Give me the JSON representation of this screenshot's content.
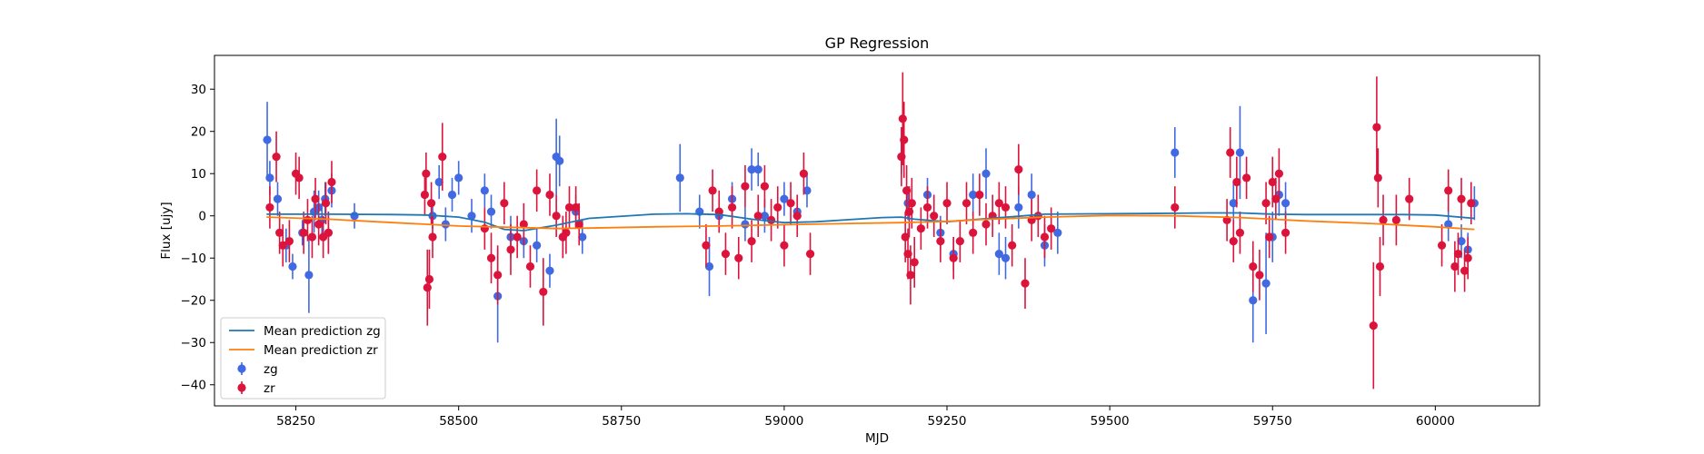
{
  "chart_data": {
    "type": "scatter",
    "title": "GP Regression",
    "xlabel": "MJD",
    "ylabel": "Flux [ujy]",
    "xlim": [
      58125,
      60160
    ],
    "ylim": [
      -45,
      38
    ],
    "xticks": [
      58250,
      58500,
      58750,
      59000,
      59250,
      59500,
      59750,
      60000
    ],
    "yticks": [
      -40,
      -30,
      -20,
      -10,
      0,
      10,
      20,
      30
    ],
    "grid": false,
    "legend_position": "lower-left",
    "legend": [
      {
        "name": "Mean prediction zg",
        "kind": "line",
        "color": "#1f77b4"
      },
      {
        "name": "Mean prediction zr",
        "kind": "line",
        "color": "#ff7f0e"
      },
      {
        "name": "zg",
        "kind": "errorbar",
        "color": "#4169e1"
      },
      {
        "name": "zr",
        "kind": "errorbar",
        "color": "#dc143c"
      }
    ],
    "series": [
      {
        "name": "Mean prediction zg",
        "kind": "line",
        "color": "#1f77b4",
        "x": [
          58205,
          58300,
          58400,
          58450,
          58500,
          58540,
          58570,
          58600,
          58650,
          58700,
          58800,
          58850,
          58900,
          58950,
          59000,
          59050,
          59100,
          59150,
          59180,
          59200,
          59250,
          59300,
          59350,
          59400,
          59500,
          59600,
          59650,
          59700,
          59750,
          59800,
          59900,
          59950,
          60000,
          60060
        ],
        "y": [
          0.4,
          0.4,
          0.3,
          0.2,
          -0.3,
          -1.5,
          -3.2,
          -3.5,
          -2.2,
          -0.6,
          0.4,
          0.5,
          0.3,
          -0.8,
          -1.6,
          -1.4,
          -0.9,
          -0.4,
          -0.3,
          -0.8,
          -1.4,
          -0.8,
          -0.2,
          0.4,
          0.5,
          0.6,
          0.7,
          0.7,
          0.4,
          0.3,
          0.3,
          0.3,
          0.2,
          -0.6
        ]
      },
      {
        "name": "Mean prediction zr",
        "kind": "line",
        "color": "#ff7f0e",
        "x": [
          58205,
          58300,
          58400,
          58450,
          58500,
          58550,
          58600,
          58650,
          58700,
          58800,
          58900,
          59000,
          59100,
          59180,
          59250,
          59300,
          59400,
          59500,
          59600,
          59700,
          59750,
          59800,
          59900,
          60000,
          60060
        ],
        "y": [
          -0.3,
          -0.8,
          -1.6,
          -2.0,
          -2.4,
          -2.6,
          -2.8,
          -3.0,
          -2.9,
          -2.6,
          -2.4,
          -2.1,
          -1.8,
          -1.6,
          -1.3,
          -0.9,
          -0.3,
          0.1,
          0.0,
          -0.4,
          -0.8,
          -1.2,
          -1.8,
          -2.6,
          -3.2
        ]
      },
      {
        "name": "zg",
        "kind": "errorbar",
        "color": "#4169e1",
        "x": [
          58206,
          58210,
          58222,
          58235,
          58245,
          58260,
          58270,
          58278,
          58285,
          58290,
          58295,
          58300,
          58305,
          58340,
          58460,
          58470,
          58480,
          58490,
          58500,
          58520,
          58540,
          58550,
          58560,
          58580,
          58600,
          58620,
          58640,
          58650,
          58655,
          58660,
          58680,
          58690,
          58840,
          58870,
          58885,
          58900,
          58920,
          58940,
          58950,
          58960,
          58970,
          59000,
          59020,
          59035,
          59180,
          59190,
          59220,
          59240,
          59260,
          59290,
          59310,
          59330,
          59340,
          59360,
          59380,
          59400,
          59420,
          59600,
          59690,
          59700,
          59720,
          59740,
          59750,
          59760,
          59770,
          60020,
          60040,
          60050,
          60060
        ],
        "y": [
          18,
          9,
          4,
          -7,
          -12,
          -4,
          -14,
          1,
          2,
          -1,
          4,
          -4,
          6,
          0,
          0,
          8,
          -2,
          5,
          9,
          0,
          6,
          1,
          -19,
          -5,
          -6,
          -7,
          -13,
          14,
          13,
          -5,
          1,
          -5,
          9,
          1,
          -12,
          0,
          4,
          -2,
          11,
          11,
          0,
          4,
          1,
          6,
          14,
          3,
          5,
          -4,
          -9,
          5,
          10,
          -9,
          -10,
          2,
          5,
          -7,
          -4,
          15,
          3,
          15,
          -20,
          -16,
          -5,
          5,
          3,
          -2,
          -6,
          -8,
          3
        ],
        "err": [
          9,
          4,
          4,
          4,
          3,
          3,
          9,
          5,
          4,
          4,
          4,
          5,
          4,
          3,
          3,
          4,
          4,
          4,
          4,
          4,
          4,
          4,
          11,
          5,
          4,
          4,
          4,
          9,
          6,
          5,
          4,
          4,
          8,
          4,
          7,
          4,
          4,
          4,
          5,
          4,
          4,
          4,
          4,
          4,
          4,
          4,
          4,
          4,
          4,
          5,
          6,
          5,
          5,
          5,
          5,
          5,
          5,
          6,
          5,
          11,
          10,
          12,
          6,
          5,
          5,
          4,
          4,
          4,
          4
        ]
      },
      {
        "name": "zr",
        "kind": "errorbar",
        "color": "#dc143c",
        "x": [
          58210,
          58220,
          58225,
          58230,
          58240,
          58250,
          58255,
          58262,
          58268,
          58275,
          58280,
          58285,
          58292,
          58296,
          58300,
          58305,
          58448,
          58450,
          58452,
          58455,
          58458,
          58460,
          58475,
          58540,
          58550,
          58560,
          58570,
          58580,
          58590,
          58600,
          58610,
          58620,
          58630,
          58640,
          58650,
          58660,
          58665,
          58670,
          58680,
          58685,
          58880,
          58890,
          58900,
          58910,
          58920,
          58930,
          58940,
          58950,
          58960,
          58970,
          58980,
          58990,
          59000,
          59010,
          59020,
          59030,
          59040,
          59180,
          59182,
          59184,
          59186,
          59188,
          59190,
          59192,
          59194,
          59196,
          59200,
          59210,
          59220,
          59230,
          59240,
          59250,
          59260,
          59270,
          59280,
          59290,
          59300,
          59310,
          59320,
          59330,
          59340,
          59350,
          59360,
          59370,
          59380,
          59390,
          59400,
          59410,
          59600,
          59680,
          59685,
          59690,
          59695,
          59700,
          59710,
          59720,
          59730,
          59740,
          59745,
          59750,
          59755,
          59760,
          59770,
          59905,
          59910,
          59912,
          59915,
          59920,
          59940,
          59960,
          60010,
          60020,
          60030,
          60035,
          60040,
          60045,
          60050,
          60055
        ],
        "y": [
          2,
          14,
          -4,
          -7,
          -6,
          10,
          9,
          -4,
          -1,
          -5,
          4,
          -2,
          -5,
          3,
          -4,
          8,
          5,
          10,
          -17,
          -15,
          3,
          -5,
          14,
          -3,
          -10,
          -14,
          3,
          -8,
          -5,
          -2,
          -12,
          6,
          -18,
          5,
          0,
          -5,
          -4,
          2,
          2,
          -2,
          -7,
          6,
          1,
          -9,
          2,
          -10,
          7,
          -6,
          0,
          7,
          -1,
          2,
          -7,
          3,
          0,
          10,
          -9,
          14,
          23,
          18,
          -5,
          6,
          -9,
          1,
          -14,
          3,
          -11,
          -3,
          2,
          0,
          -6,
          3,
          -10,
          -6,
          3,
          -4,
          5,
          -2,
          0,
          3,
          2,
          -7,
          11,
          -16,
          -1,
          0,
          -5,
          -3,
          2,
          -1,
          15,
          -6,
          8,
          -4,
          9,
          -12,
          -14,
          3,
          -5,
          8,
          4,
          10,
          -4,
          -26,
          21,
          9,
          -12,
          -1,
          -1,
          4,
          -7,
          6,
          -12,
          -9,
          4,
          -13,
          -10,
          3
        ],
        "err": [
          5,
          6,
          5,
          5,
          5,
          5,
          5,
          5,
          5,
          5,
          5,
          5,
          5,
          5,
          5,
          5,
          5,
          5,
          9,
          7,
          5,
          5,
          8,
          5,
          6,
          7,
          5,
          6,
          5,
          5,
          5,
          5,
          8,
          5,
          5,
          5,
          5,
          5,
          5,
          5,
          5,
          5,
          5,
          5,
          5,
          5,
          5,
          5,
          5,
          5,
          5,
          5,
          5,
          5,
          5,
          5,
          5,
          7,
          11,
          9,
          6,
          6,
          6,
          6,
          7,
          6,
          6,
          5,
          5,
          5,
          5,
          5,
          5,
          5,
          5,
          5,
          5,
          5,
          5,
          5,
          5,
          5,
          6,
          6,
          5,
          5,
          5,
          5,
          5,
          5,
          6,
          5,
          6,
          5,
          5,
          6,
          6,
          5,
          5,
          6,
          5,
          6,
          5,
          15,
          12,
          7,
          7,
          6,
          6,
          5,
          5,
          5,
          6,
          5,
          5,
          5,
          5,
          5
        ]
      }
    ]
  }
}
